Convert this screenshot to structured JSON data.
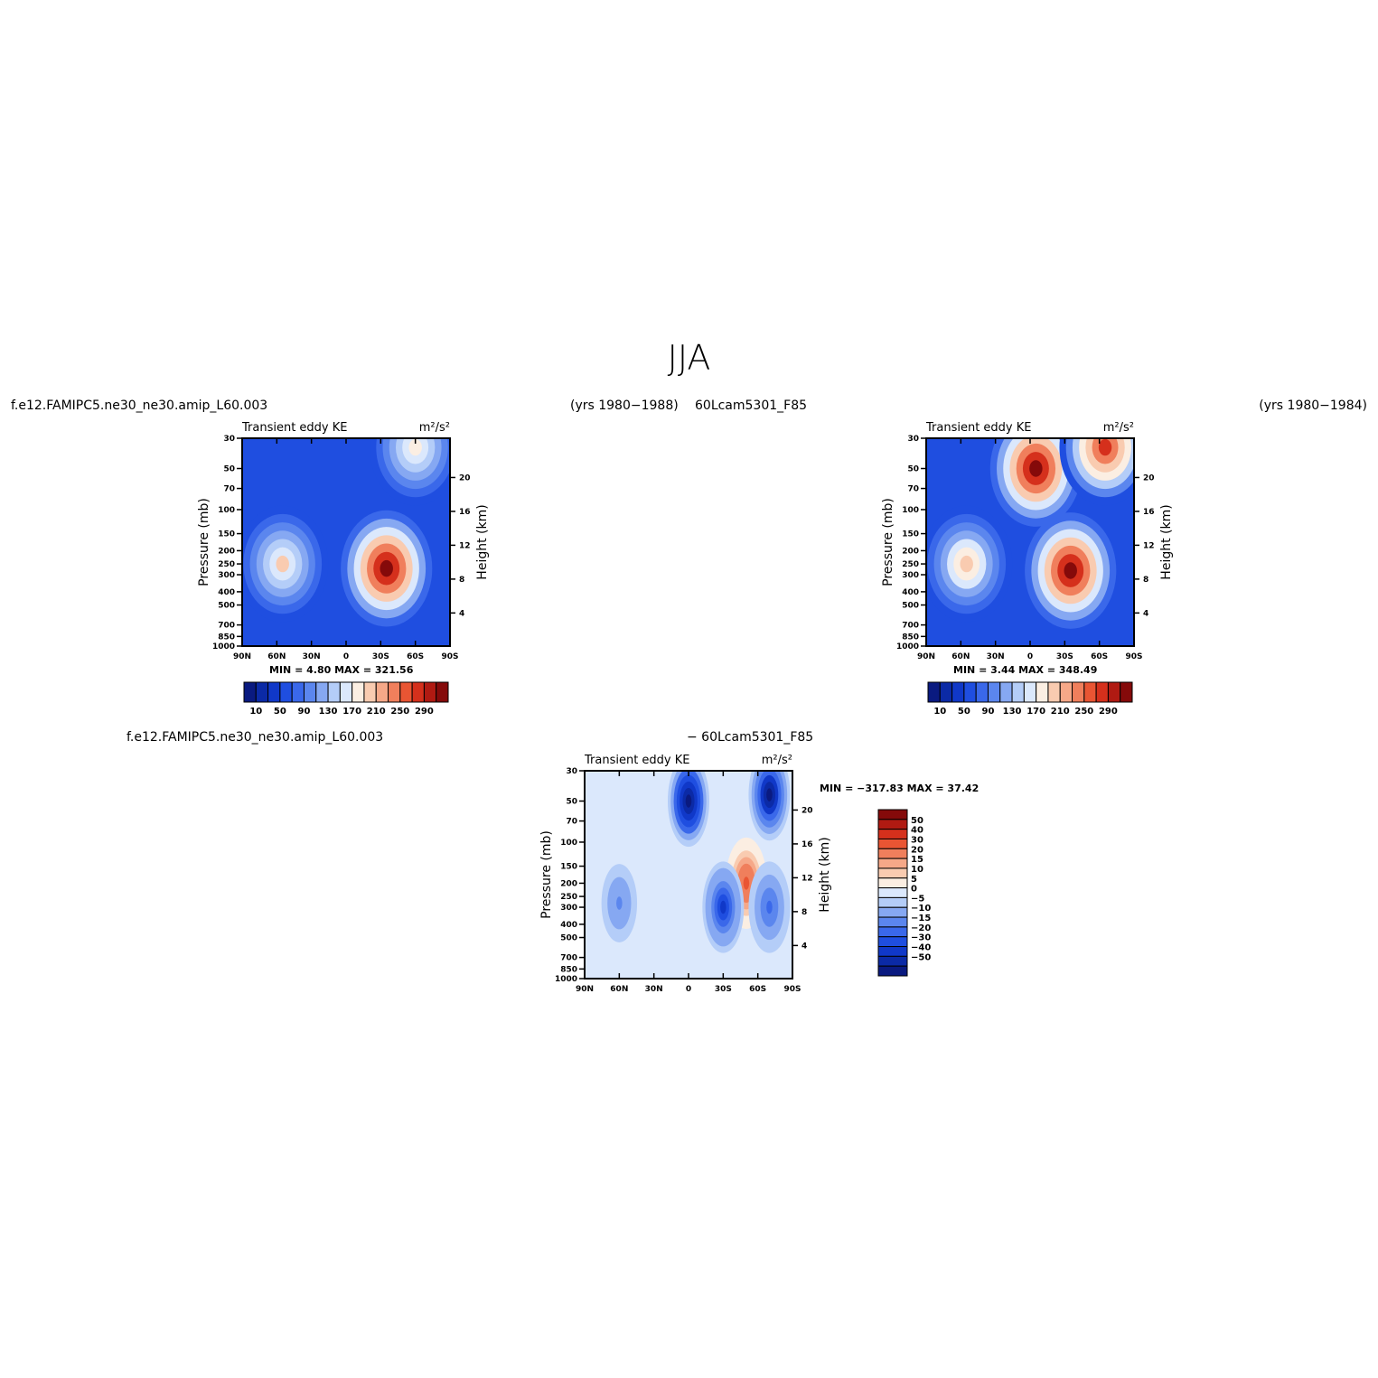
{
  "title": "JJA",
  "headers": {
    "case1": "f.e12.FAMIPC5.ne30_ne30.amip_L60.003",
    "years1": "(yrs 1980−1988)",
    "case2": "60Lcam5301_F85",
    "years2": "(yrs 1980−1984)",
    "diff_case1": "f.e12.FAMIPC5.ne30_ne30.amip_L60.003",
    "diff_case2": "− 60Lcam5301_F85"
  },
  "colors": {
    "seq_palette": [
      "#0a1a80",
      "#0b2aa6",
      "#1038c8",
      "#1f4ee0",
      "#3a68ea",
      "#5b86ee",
      "#86a8f2",
      "#b4cdf8",
      "#dbe8fc",
      "#fbeee2",
      "#f9cbb0",
      "#f6a888",
      "#f07f5c",
      "#e95533",
      "#d5301c",
      "#b01a12",
      "#850a0a"
    ],
    "diff_palette": [
      "#0a1a80",
      "#0b2aa6",
      "#1038c8",
      "#1f4ee0",
      "#3a68ea",
      "#5b86ee",
      "#86a8f2",
      "#b4cdf8",
      "#dbe8fc",
      "#fbeee2",
      "#f9cbb0",
      "#f6a888",
      "#f07f5c",
      "#e95533",
      "#d5301c",
      "#b01a12",
      "#850a0a"
    ]
  },
  "chart_data": [
    {
      "type": "heatmap",
      "subtitle": "Transient  eddy  KE",
      "units": "m²/s²",
      "ylabel": "Pressure  (mb)",
      "ylabel_right": "Height  (km)",
      "y_scale": "log",
      "ylim": [
        1000,
        30
      ],
      "xlim": [
        "90N",
        "90S"
      ],
      "x_ticks": [
        "90N",
        "60N",
        "30N",
        "0",
        "30S",
        "60S",
        "90S"
      ],
      "y_ticks": [
        30,
        50,
        70,
        100,
        150,
        200,
        250,
        300,
        400,
        500,
        700,
        850,
        1000
      ],
      "y_ticks_right": [
        20,
        16,
        12,
        8,
        4
      ],
      "min_label": "MIN =    4.80   MAX = 321.56",
      "min": 4.8,
      "max": 321.56,
      "colorbar_labels": [
        "10",
        "50",
        "90",
        "130",
        "170",
        "210",
        "250",
        "290"
      ],
      "features": [
        {
          "lat": 55,
          "p": 250,
          "value": 200
        },
        {
          "lat": -35,
          "p": 270,
          "value": 320
        },
        {
          "lat": -60,
          "p": 35,
          "value": 190
        }
      ]
    },
    {
      "type": "heatmap",
      "subtitle": "Transient  eddy  KE",
      "units": "m²/s²",
      "ylabel": "Pressure  (mb)",
      "ylabel_right": "Height  (km)",
      "y_scale": "log",
      "ylim": [
        1000,
        30
      ],
      "xlim": [
        "90N",
        "90S"
      ],
      "x_ticks": [
        "90N",
        "60N",
        "30N",
        "0",
        "30S",
        "60S",
        "90S"
      ],
      "y_ticks": [
        30,
        50,
        70,
        100,
        150,
        200,
        250,
        300,
        400,
        500,
        700,
        850,
        1000
      ],
      "y_ticks_right": [
        20,
        16,
        12,
        8,
        4
      ],
      "min_label": "MIN =    3.44   MAX = 348.49",
      "min": 3.44,
      "max": 348.49,
      "colorbar_labels": [
        "10",
        "50",
        "90",
        "130",
        "170",
        "210",
        "250",
        "290"
      ],
      "features": [
        {
          "lat": 55,
          "p": 250,
          "value": 210
        },
        {
          "lat": -35,
          "p": 280,
          "value": 340
        },
        {
          "lat": -5,
          "p": 50,
          "value": 330
        },
        {
          "lat": -65,
          "p": 35,
          "value": 290
        }
      ]
    },
    {
      "type": "heatmap",
      "subtitle": "Transient  eddy  KE",
      "units": "m²/s²",
      "ylabel": "Pressure  (mb)",
      "ylabel_right": "Height  (km)",
      "y_scale": "log",
      "ylim": [
        1000,
        30
      ],
      "xlim": [
        "90N",
        "90S"
      ],
      "x_ticks": [
        "90N",
        "60N",
        "30N",
        "0",
        "30S",
        "60S",
        "90S"
      ],
      "y_ticks": [
        30,
        50,
        70,
        100,
        150,
        200,
        250,
        300,
        400,
        500,
        700,
        850,
        1000
      ],
      "y_ticks_right": [
        20,
        16,
        12,
        8,
        4
      ],
      "min_label": "MIN = −317.83   MAX =   37.42",
      "min": -317.83,
      "max": 37.42,
      "colorbar_labels": [
        "50",
        "40",
        "30",
        "20",
        "15",
        "10",
        "5",
        "0",
        "−5",
        "−10",
        "−15",
        "−20",
        "−30",
        "−40",
        "−50"
      ],
      "features": [
        {
          "lat": 0,
          "p": 50,
          "value": -60
        },
        {
          "lat": -70,
          "p": 45,
          "value": -55
        },
        {
          "lat": -50,
          "p": 200,
          "value": 35
        },
        {
          "lat": -30,
          "p": 300,
          "value": -40
        },
        {
          "lat": 60,
          "p": 280,
          "value": -20
        },
        {
          "lat": -70,
          "p": 300,
          "value": -25
        }
      ]
    }
  ]
}
